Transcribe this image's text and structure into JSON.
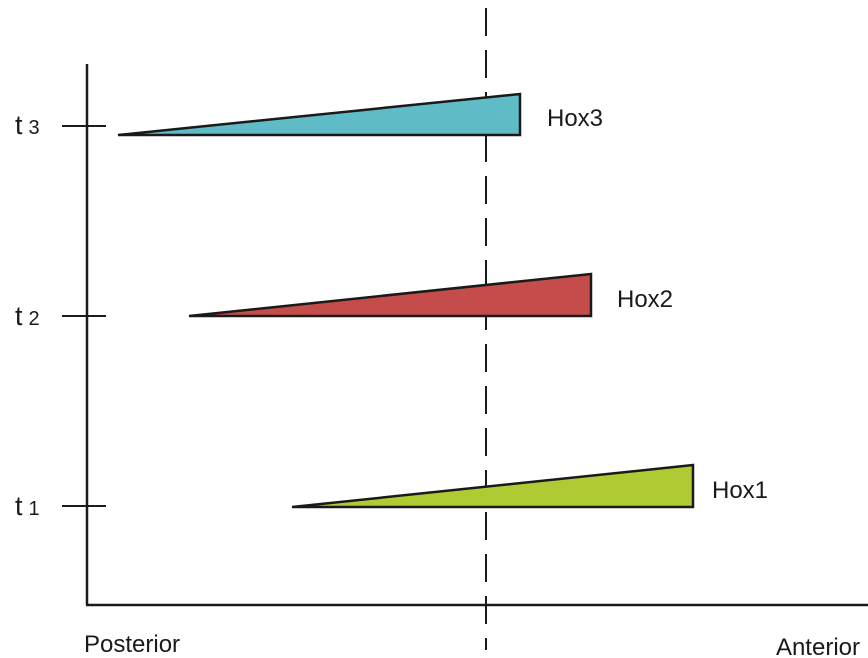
{
  "axis": {
    "left_label": "Posterior",
    "right_label": "Anterior"
  },
  "time_points": [
    {
      "base": "t",
      "sub": "1"
    },
    {
      "base": "t",
      "sub": "2"
    },
    {
      "base": "t",
      "sub": "3"
    }
  ],
  "genes": [
    {
      "label": "Hox1",
      "color": "#AECB34"
    },
    {
      "label": "Hox2",
      "color": "#C44D4B"
    },
    {
      "label": "Hox3",
      "color": "#5FBBC5"
    }
  ]
}
